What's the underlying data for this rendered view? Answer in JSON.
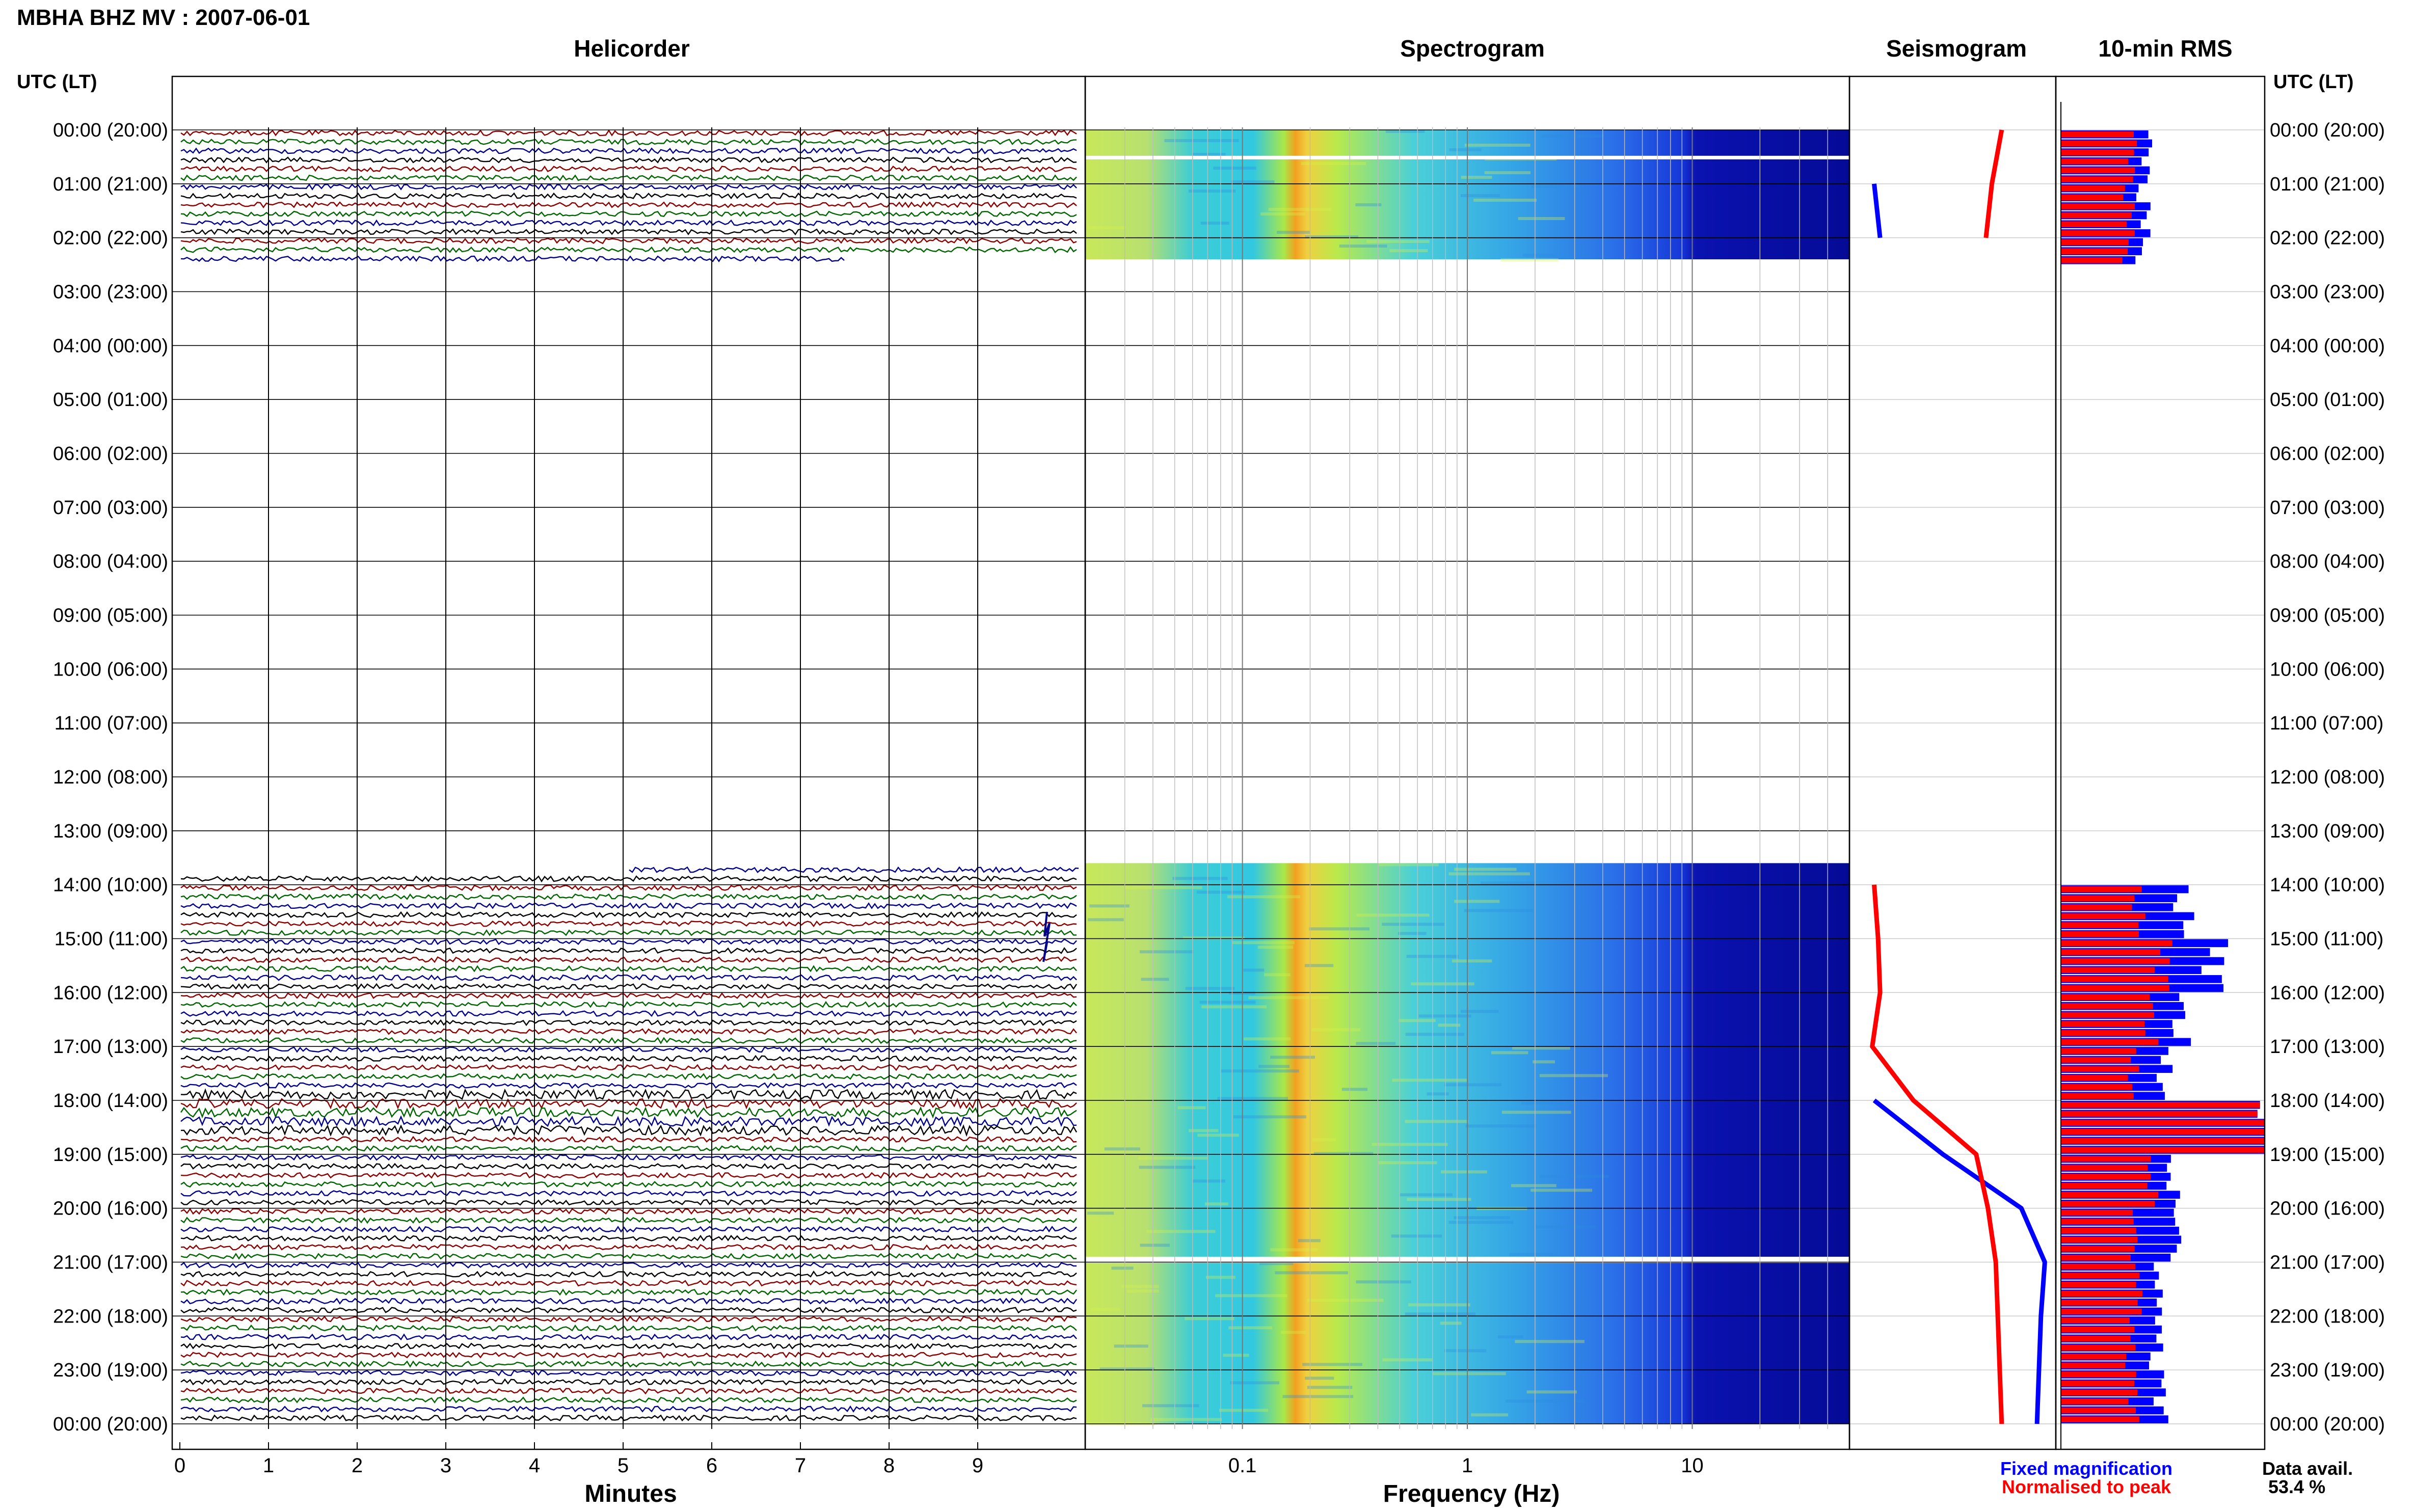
{
  "header": {
    "title": "MBHA BHZ MV : 2007-06-01",
    "utc_label": "UTC (LT)",
    "utc_label_right": "UTC (LT)"
  },
  "panels": {
    "helicorder": "Helicorder",
    "spectrogram": "Spectrogram",
    "seismogram": "Seismogram",
    "rms": "10-min RMS"
  },
  "footer": {
    "minutes_label": "Minutes",
    "frequency_label": "Frequency (Hz)",
    "legend_fixed": "Fixed magnification",
    "legend_normalised": "Normalised to peak",
    "data_avail_label": "Data avail.",
    "data_avail_value": "53.4 %"
  },
  "colors": {
    "fixed": "#0000ff",
    "normalised": "#ff0000",
    "trace_colors": [
      "#000000",
      "#8b0000",
      "#006400",
      "#00008b"
    ]
  },
  "chart_data": {
    "type": "helicorder",
    "time_labels": [
      "00:00 (20:00)",
      "01:00 (21:00)",
      "02:00 (22:00)",
      "03:00 (23:00)",
      "04:00 (00:00)",
      "05:00 (01:00)",
      "06:00 (02:00)",
      "07:00 (03:00)",
      "08:00 (04:00)",
      "09:00 (05:00)",
      "10:00 (06:00)",
      "11:00 (07:00)",
      "12:00 (08:00)",
      "13:00 (09:00)",
      "14:00 (10:00)",
      "15:00 (11:00)",
      "16:00 (12:00)",
      "17:00 (13:00)",
      "18:00 (14:00)",
      "19:00 (15:00)",
      "20:00 (16:00)",
      "21:00 (17:00)",
      "22:00 (18:00)",
      "23:00 (19:00)",
      "00:00 (20:00)"
    ],
    "minute_ticks": [
      "0",
      "1",
      "2",
      "3",
      "4",
      "5",
      "6",
      "7",
      "8",
      "9"
    ],
    "minutes_range": [
      0,
      10
    ],
    "frequency_ticks": [
      {
        "label": "0.1",
        "value": 0.1
      },
      {
        "label": "1",
        "value": 1
      },
      {
        "label": "10",
        "value": 10
      }
    ],
    "frequency_range": [
      0.02,
      50
    ],
    "frequency_scale": "log",
    "data_segments_hours": [
      [
        0,
        2.4
      ],
      [
        13.6,
        24
      ]
    ],
    "spectrogram_peak_hz": 0.25,
    "seismogram_fixed_hourly": [
      null,
      0.1,
      0.13,
      null,
      null,
      null,
      null,
      null,
      null,
      null,
      null,
      null,
      null,
      null,
      null,
      null,
      null,
      null,
      0.1,
      0.45,
      0.85,
      0.97,
      0.95,
      0.94,
      0.93
    ],
    "seismogram_normalised_hourly": [
      0.75,
      0.7,
      0.67,
      null,
      null,
      null,
      null,
      null,
      null,
      null,
      null,
      null,
      null,
      null,
      0.1,
      0.12,
      0.13,
      0.09,
      0.3,
      0.62,
      0.68,
      0.72,
      0.73,
      0.74,
      0.75
    ],
    "rms_normalised_hourly": [
      0.35,
      0.33,
      0.33,
      null,
      null,
      null,
      null,
      null,
      null,
      null,
      null,
      null,
      null,
      null,
      0.38,
      0.5,
      0.45,
      0.35,
      1.0,
      0.45,
      0.35,
      0.4,
      0.35,
      0.35,
      0.35
    ],
    "rms_fixed_hourly": [
      0.42,
      0.4,
      0.4,
      null,
      null,
      null,
      null,
      null,
      null,
      null,
      null,
      null,
      null,
      null,
      0.6,
      0.75,
      0.6,
      0.5,
      1.0,
      0.55,
      0.55,
      0.5,
      0.48,
      0.48,
      0.48
    ],
    "data_availability_percent": 53.4
  }
}
